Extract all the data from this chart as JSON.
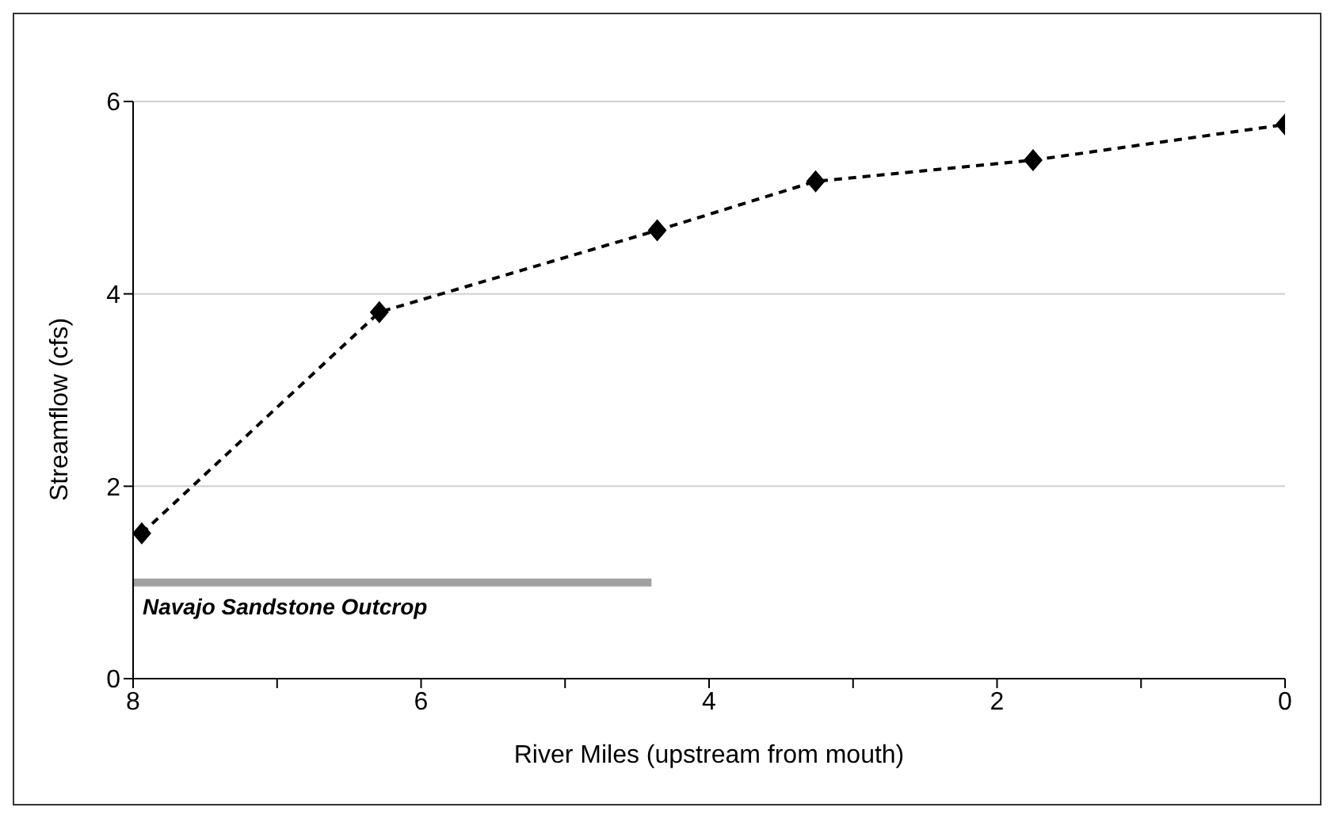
{
  "chart_data": {
    "type": "line",
    "xlabel": "River Miles (upstream from mouth)",
    "ylabel": "Streamflow (cfs)",
    "xlim": [
      8,
      0
    ],
    "xticks": [
      8,
      {
        "value": 7,
        "label": null
      },
      6,
      {
        "value": 5,
        "label": null
      },
      4,
      {
        "value": 3,
        "label": null
      },
      2,
      {
        "value": 1,
        "label": null
      },
      0
    ],
    "ylim": [
      0,
      6
    ],
    "yticks": [
      0,
      2,
      4,
      6
    ],
    "grid": "y",
    "series": [
      {
        "color": "#000000",
        "marker": "diamond",
        "line_style": "dashed",
        "x": [
          7.94,
          6.29,
          4.36,
          3.26,
          1.75,
          0
        ],
        "values": [
          1.51,
          3.81,
          4.66,
          5.17,
          5.39,
          5.76
        ]
      },
      {
        "name": "Navajo Sandstone Outcrop",
        "color": "#a0a0a0",
        "marker": "none",
        "line_style": "solid",
        "x": [
          8,
          4.4
        ],
        "values": [
          1,
          1
        ]
      }
    ]
  }
}
